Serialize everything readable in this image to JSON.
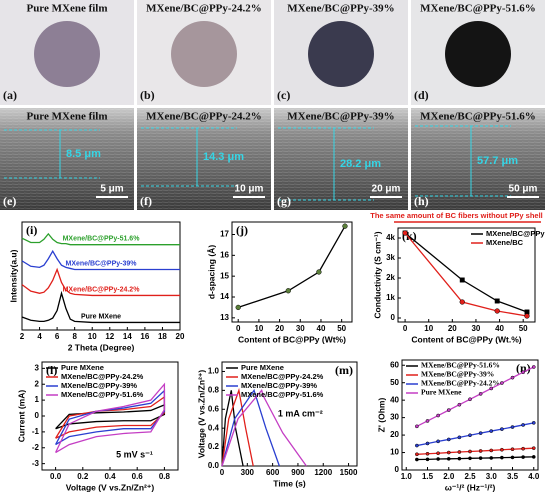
{
  "photos": [
    {
      "title": "Pure MXene film",
      "label": "(a)"
    },
    {
      "title": "MXene/BC@PPy-24.2%",
      "label": "(b)"
    },
    {
      "title": "MXene/BC@PPy-39%",
      "label": "(c)"
    },
    {
      "title": "MXene/BC@PPy-51.6%",
      "label": "(d)"
    }
  ],
  "sem": [
    {
      "title": "Pure MXene film",
      "label": "(e)",
      "thickness": "8.5 μm",
      "scale_bar": "5 μm"
    },
    {
      "title": "MXene/BC@PPy-24.2%",
      "label": "(f)",
      "thickness": "14.3 μm",
      "scale_bar": "10 μm"
    },
    {
      "title": "MXene/BC@PPy-39%",
      "label": "(g)",
      "thickness": "28.2 μm",
      "scale_bar": "20 μm"
    },
    {
      "title": "MXene/BC@PPy-51.6%",
      "label": "(h)",
      "thickness": "57.7 μm",
      "scale_bar": "50 μm"
    }
  ],
  "chart_data": [
    {
      "type": "line",
      "panel_label": "(i)",
      "x_label": "2 Theta (Degree)",
      "y_label": "Intensity(a.u)",
      "legend": "on-curves",
      "x": [
        2,
        3,
        4,
        4.5,
        5,
        5.5,
        6,
        6.5,
        7,
        7.5,
        8,
        10,
        12,
        14,
        16,
        18,
        20
      ],
      "xlim": [
        2,
        20
      ],
      "xticks": [
        2,
        4,
        6,
        8,
        10,
        12,
        14,
        16,
        18,
        20
      ],
      "ylim": [
        0,
        10
      ],
      "series": [
        {
          "name": "MXene/BC@PPy-51.6%",
          "color": "#2ca02c",
          "values": [
            8.5,
            8.1,
            8.1,
            8.4,
            8.9,
            8.4,
            8.1,
            8.0,
            8.0,
            7.9,
            7.9,
            7.9,
            7.9,
            7.9,
            7.9,
            7.9,
            7.9
          ]
        },
        {
          "name": "MXene/BC@PPy-39%",
          "color": "#2a3fd0",
          "values": [
            6.4,
            5.9,
            5.8,
            6.0,
            6.6,
            7.3,
            6.6,
            6.0,
            5.8,
            5.7,
            5.6,
            5.6,
            5.6,
            5.6,
            5.6,
            5.6,
            5.6
          ]
        },
        {
          "name": "MXene/BC@PPy-24.2%",
          "color": "#e0201b",
          "values": [
            4.2,
            3.6,
            3.4,
            3.5,
            3.9,
            4.6,
            5.6,
            4.4,
            3.7,
            3.4,
            3.3,
            3.2,
            3.2,
            3.2,
            3.2,
            3.2,
            3.2
          ]
        },
        {
          "name": "Pure MXene",
          "color": "#000000",
          "values": [
            1.2,
            0.9,
            0.8,
            0.8,
            0.9,
            1.1,
            1.8,
            3.4,
            2.0,
            1.0,
            0.8,
            0.7,
            0.7,
            0.7,
            0.7,
            0.7,
            0.7
          ]
        }
      ]
    },
    {
      "type": "line",
      "panel_label": "(j)",
      "x_label": "Content of BC@PPy (Wt%)",
      "y_label": "d-spacing (Å)",
      "x": [
        0,
        24.2,
        39,
        51.6
      ],
      "values": [
        13.5,
        14.3,
        15.2,
        17.4
      ],
      "color": "#000000",
      "marker": "circle",
      "marker_color": "#5b7f3a",
      "xlim": [
        -3,
        55
      ],
      "xticks": [
        0,
        10,
        20,
        30,
        40,
        50
      ],
      "ylim": [
        12.8,
        17.6
      ],
      "yticks": [
        13,
        14,
        15,
        16,
        17
      ]
    },
    {
      "type": "line",
      "panel_label": "(k)",
      "title": "The same amount of BC fibers without PPy shell",
      "title_color": "#e0201b",
      "x_label": "Content of BC@PPy (Wt.%)",
      "y_label": "Conductivity (S cm⁻¹)",
      "legend": "upper right",
      "x": [
        0,
        24.2,
        39,
        51.6
      ],
      "xlim": [
        -3,
        55
      ],
      "xticks": [
        0,
        10,
        20,
        30,
        40,
        50
      ],
      "ylim": [
        -200,
        4500
      ],
      "yticks": [
        0,
        {
          "value": 1000,
          "label": "1k"
        },
        {
          "value": 2000,
          "label": "2k"
        },
        {
          "value": 3000,
          "label": "3k"
        },
        {
          "value": 4000,
          "label": "4k"
        }
      ],
      "series": [
        {
          "name": "MXene/BC@PPy",
          "color": "#000000",
          "marker": "square",
          "values": [
            4250,
            1900,
            850,
            300
          ]
        },
        {
          "name": "MXene/BC",
          "color": "#e0201b",
          "marker": "circle",
          "values": [
            4250,
            800,
            350,
            100
          ]
        }
      ]
    },
    {
      "type": "line",
      "panel_label": "(l)",
      "x_label": "Voltage (V vs.Zn/Zn²⁺)",
      "y_label": "Current (mA)",
      "annotation": "5 mV s⁻¹",
      "legend": "upper left",
      "xlim": [
        -0.1,
        0.9
      ],
      "xticks": [
        {
          "value": 0,
          "label": "0.0"
        },
        0.2,
        0.4,
        0.6,
        0.8
      ],
      "ylim": [
        -3.4,
        3.4
      ],
      "yticks": [
        -3,
        -2,
        -1,
        0,
        1,
        2,
        3
      ],
      "series": [
        {
          "name": "Pure MXene",
          "color": "#000000",
          "x": [
            0,
            0.1,
            0.3,
            0.5,
            0.7,
            0.8,
            0.8,
            0.7,
            0.5,
            0.3,
            0.1,
            0
          ],
          "values": [
            -0.8,
            0.1,
            0.2,
            0.25,
            0.35,
            0.7,
            0.1,
            -0.3,
            -0.3,
            -0.35,
            -0.5,
            -0.8
          ]
        },
        {
          "name": "MXene/BC@PPy-24.2%",
          "color": "#e0201b",
          "x": [
            0,
            0.1,
            0.3,
            0.5,
            0.7,
            0.8,
            0.8,
            0.7,
            0.5,
            0.3,
            0.1,
            0
          ],
          "values": [
            -1.4,
            0.0,
            0.3,
            0.4,
            0.6,
            1.2,
            0.2,
            -0.6,
            -0.6,
            -0.7,
            -1.0,
            -1.4
          ]
        },
        {
          "name": "MXene/BC@PPy-39%",
          "color": "#2a3fd0",
          "x": [
            0,
            0.1,
            0.3,
            0.5,
            0.7,
            0.8,
            0.8,
            0.7,
            0.5,
            0.3,
            0.1,
            0
          ],
          "values": [
            -1.8,
            -0.2,
            0.3,
            0.5,
            0.8,
            1.6,
            0.3,
            -0.8,
            -0.8,
            -1.0,
            -1.3,
            -1.8
          ]
        },
        {
          "name": "MXene/BC@PPy-51.6%",
          "color": "#c43ec4",
          "x": [
            0,
            0.1,
            0.3,
            0.5,
            0.7,
            0.8,
            0.8,
            0.7,
            0.5,
            0.3,
            0.1,
            0
          ],
          "values": [
            -2.3,
            -0.5,
            0.3,
            0.6,
            1.0,
            2.0,
            0.4,
            -1.0,
            -1.1,
            -1.3,
            -1.8,
            -2.3
          ]
        }
      ]
    },
    {
      "type": "line",
      "panel_label": "(m)",
      "x_label": "Time (s)",
      "y_label": "Voltage (V vs.Zn/Zn²⁺)",
      "annotation": "1 mA cm⁻²",
      "legend": "upper left",
      "xlim": [
        0,
        1600
      ],
      "xticks": [
        0,
        300,
        600,
        900,
        1200,
        1500
      ],
      "ylim": [
        0,
        1.1
      ],
      "yticks": [
        {
          "value": 0,
          "label": "0.0"
        },
        0.2,
        0.4,
        0.6,
        0.8,
        {
          "value": 1,
          "label": "1.0"
        }
      ],
      "series": [
        {
          "name": "Pure MXene",
          "color": "#000000",
          "x": [
            0,
            40,
            110,
            160,
            250
          ],
          "values": [
            0,
            0.5,
            0.8,
            0.4,
            0
          ]
        },
        {
          "name": "MXene/BC@PPy-24.2%",
          "color": "#e0201b",
          "x": [
            0,
            80,
            200,
            280,
            370
          ],
          "values": [
            0,
            0.5,
            0.8,
            0.4,
            0
          ]
        },
        {
          "name": "MXene/BC@PPy-39%",
          "color": "#2a3fd0",
          "x": [
            0,
            150,
            380,
            520,
            680
          ],
          "values": [
            0,
            0.5,
            0.8,
            0.4,
            0
          ]
        },
        {
          "name": "MXene/BC@PPy-51.6%",
          "color": "#c43ec4",
          "x": [
            0,
            190,
            470,
            490,
            720,
            1000
          ],
          "values": [
            0,
            0.5,
            0.8,
            0.74,
            0.35,
            0
          ]
        }
      ]
    },
    {
      "type": "line",
      "panel_label": "(n)",
      "x_label": "ω⁻¹/² (Hz⁻¹/²)",
      "y_label": "Z' (Ohm)",
      "legend": "upper left",
      "marker": "circle",
      "x": [
        1.25,
        1.5,
        1.75,
        2,
        2.25,
        2.5,
        2.75,
        3,
        3.25,
        3.5,
        3.75,
        4
      ],
      "xlim": [
        0.9,
        4.1
      ],
      "xticks": [
        {
          "value": 1,
          "label": "1.0"
        },
        1.5,
        {
          "value": 2,
          "label": "2.0"
        },
        2.5,
        {
          "value": 3,
          "label": "3.0"
        },
        3.5,
        {
          "value": 4,
          "label": "4.0"
        }
      ],
      "ylim": [
        0,
        63
      ],
      "yticks": [
        0,
        10,
        20,
        30,
        40,
        50,
        60
      ],
      "series": [
        {
          "name": "MXene/BC@PPy-51.6%",
          "color": "#000000",
          "values": [
            6,
            6.1,
            6.3,
            6.4,
            6.5,
            6.7,
            6.8,
            6.9,
            7.1,
            7.2,
            7.4,
            7.5
          ]
        },
        {
          "name": "MXene/BC@PPy-39%",
          "color": "#e0201b",
          "values": [
            9,
            9.3,
            9.6,
            10,
            10.3,
            10.6,
            10.9,
            11.2,
            11.6,
            11.9,
            12.2,
            12.5
          ]
        },
        {
          "name": "MXene/BC@PPy-24.2%",
          "color": "#2a3fd0",
          "values": [
            14,
            15.2,
            16.4,
            17.5,
            18.7,
            19.9,
            21.1,
            22.3,
            23.4,
            24.6,
            25.8,
            27
          ]
        },
        {
          "name": "Pure MXene",
          "color": "#c43ec4",
          "values": [
            25,
            28.1,
            31.2,
            34.3,
            37.4,
            40.5,
            43.6,
            46.7,
            49.8,
            52.9,
            56,
            59
          ]
        }
      ]
    }
  ]
}
